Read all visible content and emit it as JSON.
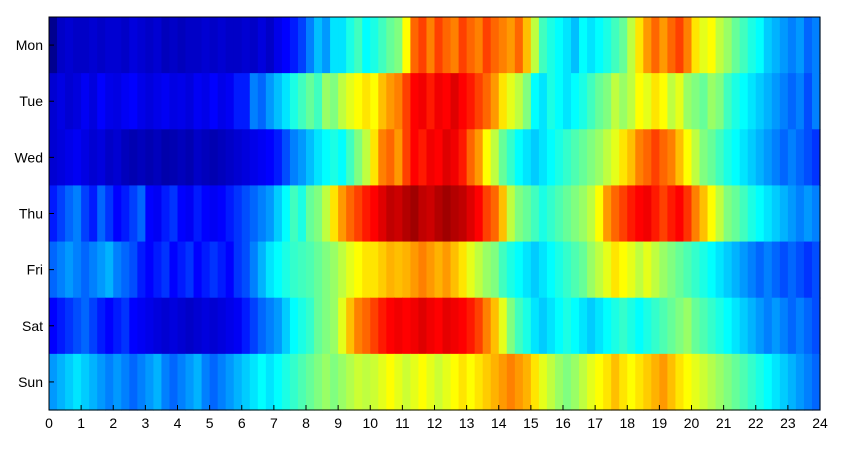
{
  "chart_data": {
    "type": "heatmap",
    "title": "",
    "xlabel": "",
    "ylabel": "",
    "xlim": [
      0,
      24
    ],
    "x_tick_labels": [
      "0",
      "1",
      "2",
      "3",
      "4",
      "5",
      "6",
      "7",
      "8",
      "9",
      "10",
      "11",
      "12",
      "13",
      "14",
      "15",
      "16",
      "17",
      "18",
      "19",
      "20",
      "21",
      "22",
      "23",
      "24"
    ],
    "y_categories": [
      "Mon",
      "Tue",
      "Wed",
      "Thu",
      "Fri",
      "Sat",
      "Sun"
    ],
    "colormap": [
      "#00008f",
      "#0000ff",
      "#00ffff",
      "#ffff00",
      "#ff0000",
      "#800000"
    ],
    "value_range": [
      0,
      1
    ],
    "bins_per_hour": 4,
    "rows": [
      [
        0.0,
        0.1,
        0.12,
        0.1,
        0.1,
        0.12,
        0.1,
        0.12,
        0.12,
        0.1,
        0.14,
        0.12,
        0.1,
        0.12,
        0.08,
        0.1,
        0.08,
        0.1,
        0.1,
        0.12,
        0.1,
        0.12,
        0.1,
        0.1,
        0.12,
        0.1,
        0.14,
        0.1,
        0.16,
        0.2,
        0.22,
        0.25,
        0.3,
        0.35,
        0.32,
        0.38,
        0.38,
        0.42,
        0.45,
        0.4,
        0.42,
        0.45,
        0.48,
        0.5,
        0.6,
        0.72,
        0.75,
        0.7,
        0.75,
        0.72,
        0.7,
        0.75,
        0.72,
        0.7,
        0.75,
        0.72,
        0.7,
        0.68,
        0.72,
        0.65,
        0.55,
        0.45,
        0.42,
        0.4,
        0.38,
        0.35,
        0.4,
        0.38,
        0.4,
        0.42,
        0.45,
        0.48,
        0.55,
        0.62,
        0.68,
        0.72,
        0.68,
        0.72,
        0.75,
        0.7,
        0.62,
        0.58,
        0.6,
        0.55,
        0.52,
        0.48,
        0.45,
        0.42,
        0.4,
        0.36,
        0.34,
        0.32,
        0.3,
        0.32,
        0.28,
        0.3
      ],
      [
        0.12,
        0.15,
        0.12,
        0.14,
        0.18,
        0.14,
        0.2,
        0.16,
        0.15,
        0.18,
        0.2,
        0.16,
        0.14,
        0.16,
        0.18,
        0.15,
        0.16,
        0.14,
        0.18,
        0.16,
        0.2,
        0.16,
        0.18,
        0.22,
        0.22,
        0.3,
        0.28,
        0.32,
        0.35,
        0.38,
        0.42,
        0.45,
        0.48,
        0.45,
        0.52,
        0.5,
        0.55,
        0.58,
        0.6,
        0.62,
        0.6,
        0.65,
        0.68,
        0.7,
        0.75,
        0.8,
        0.82,
        0.78,
        0.82,
        0.8,
        0.85,
        0.8,
        0.78,
        0.75,
        0.72,
        0.68,
        0.62,
        0.58,
        0.55,
        0.5,
        0.4,
        0.38,
        0.42,
        0.4,
        0.38,
        0.4,
        0.42,
        0.45,
        0.48,
        0.5,
        0.55,
        0.52,
        0.55,
        0.6,
        0.58,
        0.62,
        0.6,
        0.55,
        0.58,
        0.52,
        0.5,
        0.48,
        0.52,
        0.5,
        0.45,
        0.42,
        0.4,
        0.38,
        0.36,
        0.34,
        0.32,
        0.3,
        0.28,
        0.3,
        0.26,
        0.3
      ],
      [
        0.12,
        0.14,
        0.16,
        0.18,
        0.15,
        0.12,
        0.14,
        0.1,
        0.12,
        0.08,
        0.06,
        0.08,
        0.06,
        0.08,
        0.05,
        0.06,
        0.08,
        0.06,
        0.1,
        0.08,
        0.06,
        0.08,
        0.1,
        0.12,
        0.14,
        0.16,
        0.18,
        0.2,
        0.22,
        0.26,
        0.3,
        0.32,
        0.35,
        0.38,
        0.4,
        0.42,
        0.4,
        0.45,
        0.5,
        0.55,
        0.62,
        0.7,
        0.72,
        0.68,
        0.75,
        0.8,
        0.78,
        0.82,
        0.8,
        0.85,
        0.82,
        0.78,
        0.72,
        0.68,
        0.6,
        0.55,
        0.48,
        0.44,
        0.4,
        0.38,
        0.36,
        0.38,
        0.4,
        0.42,
        0.44,
        0.46,
        0.48,
        0.5,
        0.52,
        0.55,
        0.58,
        0.62,
        0.65,
        0.7,
        0.72,
        0.75,
        0.72,
        0.7,
        0.65,
        0.6,
        0.55,
        0.5,
        0.48,
        0.45,
        0.42,
        0.4,
        0.38,
        0.36,
        0.34,
        0.32,
        0.3,
        0.28,
        0.3,
        0.28,
        0.26,
        0.24
      ],
      [
        0.22,
        0.25,
        0.28,
        0.3,
        0.25,
        0.22,
        0.28,
        0.24,
        0.2,
        0.22,
        0.25,
        0.28,
        0.2,
        0.18,
        0.22,
        0.24,
        0.2,
        0.18,
        0.22,
        0.2,
        0.18,
        0.2,
        0.22,
        0.24,
        0.26,
        0.28,
        0.3,
        0.32,
        0.36,
        0.4,
        0.45,
        0.42,
        0.48,
        0.5,
        0.55,
        0.62,
        0.68,
        0.72,
        0.75,
        0.78,
        0.8,
        0.85,
        0.9,
        0.88,
        0.92,
        0.95,
        0.9,
        0.88,
        0.92,
        0.95,
        0.92,
        0.9,
        0.85,
        0.8,
        0.75,
        0.72,
        0.65,
        0.55,
        0.5,
        0.48,
        0.45,
        0.42,
        0.44,
        0.46,
        0.48,
        0.5,
        0.52,
        0.55,
        0.6,
        0.68,
        0.72,
        0.75,
        0.78,
        0.8,
        0.82,
        0.78,
        0.75,
        0.78,
        0.8,
        0.76,
        0.7,
        0.65,
        0.6,
        0.55,
        0.5,
        0.48,
        0.45,
        0.42,
        0.4,
        0.38,
        0.36,
        0.34,
        0.32,
        0.3,
        0.32,
        0.3
      ],
      [
        0.28,
        0.3,
        0.32,
        0.3,
        0.28,
        0.3,
        0.32,
        0.34,
        0.3,
        0.28,
        0.26,
        0.22,
        0.2,
        0.22,
        0.24,
        0.2,
        0.22,
        0.24,
        0.2,
        0.22,
        0.24,
        0.22,
        0.2,
        0.24,
        0.26,
        0.3,
        0.34,
        0.38,
        0.4,
        0.42,
        0.44,
        0.45,
        0.46,
        0.48,
        0.5,
        0.52,
        0.55,
        0.58,
        0.6,
        0.62,
        0.62,
        0.64,
        0.66,
        0.65,
        0.66,
        0.68,
        0.7,
        0.68,
        0.66,
        0.68,
        0.65,
        0.62,
        0.58,
        0.55,
        0.52,
        0.5,
        0.45,
        0.42,
        0.4,
        0.38,
        0.36,
        0.38,
        0.4,
        0.42,
        0.44,
        0.46,
        0.48,
        0.52,
        0.55,
        0.58,
        0.62,
        0.6,
        0.58,
        0.55,
        0.58,
        0.55,
        0.52,
        0.5,
        0.48,
        0.46,
        0.44,
        0.42,
        0.4,
        0.38,
        0.36,
        0.34,
        0.32,
        0.3,
        0.28,
        0.3,
        0.28,
        0.26,
        0.28,
        0.26,
        0.24,
        0.26
      ],
      [
        0.2,
        0.22,
        0.24,
        0.26,
        0.28,
        0.25,
        0.22,
        0.2,
        0.22,
        0.24,
        0.2,
        0.18,
        0.16,
        0.14,
        0.12,
        0.14,
        0.12,
        0.1,
        0.12,
        0.14,
        0.12,
        0.14,
        0.16,
        0.18,
        0.22,
        0.25,
        0.28,
        0.3,
        0.32,
        0.36,
        0.4,
        0.42,
        0.44,
        0.48,
        0.5,
        0.52,
        0.58,
        0.65,
        0.7,
        0.72,
        0.75,
        0.78,
        0.8,
        0.82,
        0.8,
        0.82,
        0.85,
        0.82,
        0.8,
        0.84,
        0.82,
        0.8,
        0.78,
        0.75,
        0.7,
        0.65,
        0.58,
        0.5,
        0.45,
        0.42,
        0.38,
        0.36,
        0.38,
        0.4,
        0.42,
        0.4,
        0.38,
        0.36,
        0.38,
        0.4,
        0.42,
        0.44,
        0.42,
        0.4,
        0.42,
        0.44,
        0.46,
        0.48,
        0.5,
        0.52,
        0.48,
        0.46,
        0.44,
        0.42,
        0.4,
        0.38,
        0.36,
        0.34,
        0.32,
        0.3,
        0.32,
        0.3,
        0.28,
        0.3,
        0.28,
        0.26
      ],
      [
        0.32,
        0.34,
        0.36,
        0.38,
        0.36,
        0.34,
        0.32,
        0.3,
        0.32,
        0.3,
        0.28,
        0.3,
        0.32,
        0.34,
        0.3,
        0.28,
        0.3,
        0.32,
        0.34,
        0.3,
        0.28,
        0.3,
        0.32,
        0.34,
        0.36,
        0.38,
        0.4,
        0.38,
        0.4,
        0.42,
        0.44,
        0.46,
        0.48,
        0.5,
        0.52,
        0.5,
        0.52,
        0.54,
        0.56,
        0.55,
        0.56,
        0.58,
        0.6,
        0.58,
        0.56,
        0.58,
        0.6,
        0.58,
        0.56,
        0.58,
        0.6,
        0.62,
        0.6,
        0.62,
        0.64,
        0.66,
        0.68,
        0.7,
        0.68,
        0.66,
        0.62,
        0.58,
        0.55,
        0.52,
        0.5,
        0.52,
        0.55,
        0.58,
        0.6,
        0.62,
        0.65,
        0.62,
        0.6,
        0.62,
        0.64,
        0.66,
        0.68,
        0.65,
        0.62,
        0.6,
        0.58,
        0.56,
        0.54,
        0.52,
        0.5,
        0.48,
        0.46,
        0.44,
        0.42,
        0.4,
        0.38,
        0.36,
        0.34,
        0.32,
        0.3,
        0.28
      ]
    ]
  }
}
